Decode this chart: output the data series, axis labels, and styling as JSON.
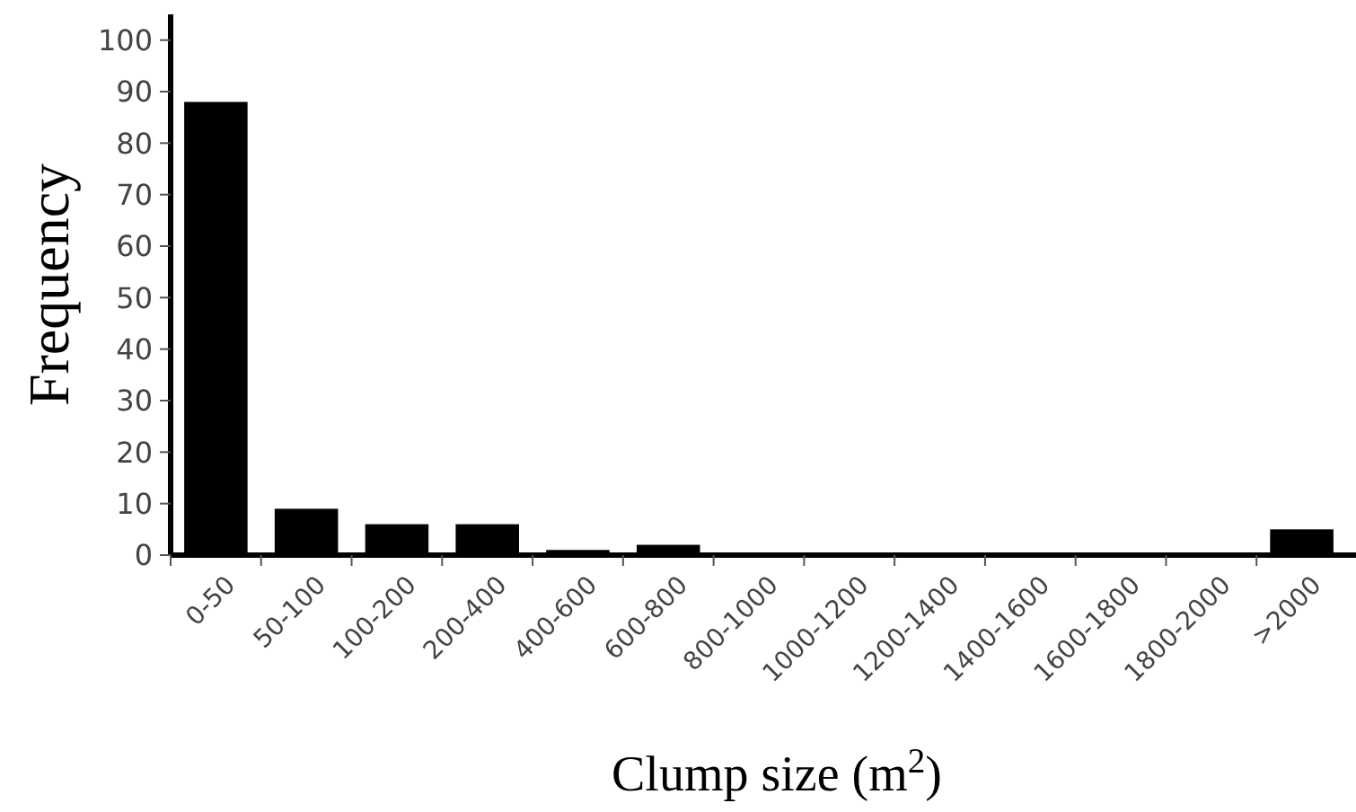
{
  "chart_data": {
    "type": "bar",
    "xlabel": "Clump size (m$^{2}$)",
    "ylabel": "Frequency",
    "categories": [
      "0-50",
      "50-100",
      "100-200",
      "200-400",
      "400-600",
      "600-800",
      "800-1000",
      "1000-1200",
      "1200-1400",
      "1400-1600",
      "1600-1800",
      "1800-2000",
      ">2000"
    ],
    "values": [
      88,
      9,
      6,
      6,
      1,
      2,
      0,
      0,
      0,
      0,
      0,
      0,
      5
    ],
    "color": "#000000",
    "ylim": [
      0,
      105
    ],
    "yticks": [
      0,
      10,
      20,
      30,
      40,
      50,
      60,
      70,
      80,
      90,
      100
    ]
  }
}
